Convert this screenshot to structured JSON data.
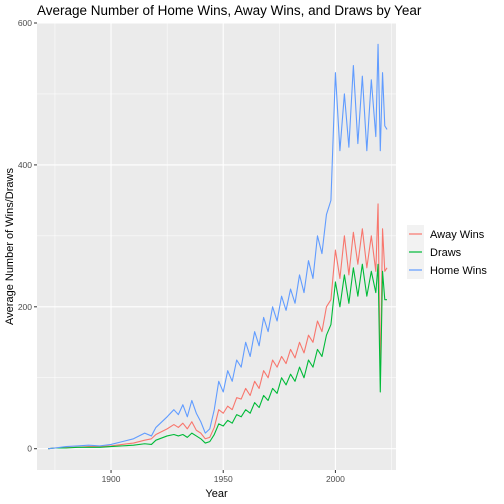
{
  "chart_data": {
    "type": "line",
    "title": "Average Number of Home Wins, Away Wins, and Draws by Year",
    "xlabel": "Year",
    "ylabel": "Average Number of Wins/Draws",
    "xlim": [
      1867,
      2027
    ],
    "ylim": [
      -30,
      600
    ],
    "x_ticks": [
      1900,
      1950,
      2000
    ],
    "y_ticks": [
      0,
      200,
      400,
      600
    ],
    "grid": true,
    "legend_position": "right",
    "background": "#ebebeb",
    "series": [
      {
        "name": "Away Wins",
        "color": "#f8766d",
        "points": [
          [
            1872,
            0
          ],
          [
            1875,
            1
          ],
          [
            1880,
            2
          ],
          [
            1885,
            2
          ],
          [
            1890,
            3
          ],
          [
            1895,
            3
          ],
          [
            1900,
            4
          ],
          [
            1905,
            6
          ],
          [
            1910,
            8
          ],
          [
            1915,
            12
          ],
          [
            1918,
            14
          ],
          [
            1920,
            20
          ],
          [
            1925,
            28
          ],
          [
            1928,
            34
          ],
          [
            1930,
            30
          ],
          [
            1932,
            36
          ],
          [
            1934,
            28
          ],
          [
            1936,
            38
          ],
          [
            1938,
            26
          ],
          [
            1940,
            22
          ],
          [
            1942,
            14
          ],
          [
            1944,
            16
          ],
          [
            1946,
            30
          ],
          [
            1948,
            55
          ],
          [
            1950,
            50
          ],
          [
            1952,
            60
          ],
          [
            1954,
            55
          ],
          [
            1956,
            72
          ],
          [
            1958,
            70
          ],
          [
            1960,
            85
          ],
          [
            1962,
            75
          ],
          [
            1964,
            95
          ],
          [
            1966,
            85
          ],
          [
            1968,
            110
          ],
          [
            1970,
            100
          ],
          [
            1972,
            125
          ],
          [
            1974,
            115
          ],
          [
            1976,
            130
          ],
          [
            1978,
            120
          ],
          [
            1980,
            140
          ],
          [
            1982,
            128
          ],
          [
            1984,
            150
          ],
          [
            1986,
            135
          ],
          [
            1988,
            160
          ],
          [
            1990,
            150
          ],
          [
            1992,
            180
          ],
          [
            1994,
            165
          ],
          [
            1996,
            200
          ],
          [
            1998,
            210
          ],
          [
            2000,
            280
          ],
          [
            2002,
            240
          ],
          [
            2004,
            300
          ],
          [
            2006,
            245
          ],
          [
            2008,
            305
          ],
          [
            2010,
            260
          ],
          [
            2012,
            310
          ],
          [
            2014,
            255
          ],
          [
            2016,
            300
          ],
          [
            2018,
            250
          ],
          [
            2019,
            345
          ],
          [
            2020,
            100
          ],
          [
            2021,
            310
          ],
          [
            2022,
            250
          ],
          [
            2023,
            255
          ]
        ]
      },
      {
        "name": "Draws",
        "color": "#00ba38",
        "points": [
          [
            1872,
            0
          ],
          [
            1875,
            1
          ],
          [
            1880,
            1
          ],
          [
            1885,
            2
          ],
          [
            1890,
            2
          ],
          [
            1895,
            2
          ],
          [
            1900,
            3
          ],
          [
            1905,
            4
          ],
          [
            1910,
            5
          ],
          [
            1915,
            7
          ],
          [
            1918,
            6
          ],
          [
            1920,
            12
          ],
          [
            1925,
            18
          ],
          [
            1928,
            20
          ],
          [
            1930,
            18
          ],
          [
            1932,
            20
          ],
          [
            1934,
            16
          ],
          [
            1936,
            22
          ],
          [
            1938,
            18
          ],
          [
            1940,
            14
          ],
          [
            1942,
            8
          ],
          [
            1944,
            10
          ],
          [
            1946,
            20
          ],
          [
            1948,
            35
          ],
          [
            1950,
            32
          ],
          [
            1952,
            40
          ],
          [
            1954,
            36
          ],
          [
            1956,
            48
          ],
          [
            1958,
            45
          ],
          [
            1960,
            55
          ],
          [
            1962,
            50
          ],
          [
            1964,
            65
          ],
          [
            1966,
            58
          ],
          [
            1968,
            75
          ],
          [
            1970,
            68
          ],
          [
            1972,
            85
          ],
          [
            1974,
            78
          ],
          [
            1976,
            100
          ],
          [
            1978,
            90
          ],
          [
            1980,
            105
          ],
          [
            1982,
            95
          ],
          [
            1984,
            115
          ],
          [
            1986,
            100
          ],
          [
            1988,
            125
          ],
          [
            1990,
            115
          ],
          [
            1992,
            140
          ],
          [
            1994,
            130
          ],
          [
            1996,
            160
          ],
          [
            1998,
            175
          ],
          [
            2000,
            235
          ],
          [
            2002,
            200
          ],
          [
            2004,
            245
          ],
          [
            2006,
            205
          ],
          [
            2008,
            255
          ],
          [
            2010,
            215
          ],
          [
            2012,
            260
          ],
          [
            2014,
            215
          ],
          [
            2016,
            250
          ],
          [
            2018,
            220
          ],
          [
            2019,
            260
          ],
          [
            2020,
            80
          ],
          [
            2021,
            250
          ],
          [
            2022,
            210
          ],
          [
            2023,
            210
          ]
        ]
      },
      {
        "name": "Home Wins",
        "color": "#619cff",
        "points": [
          [
            1872,
            0
          ],
          [
            1875,
            1
          ],
          [
            1880,
            3
          ],
          [
            1885,
            4
          ],
          [
            1890,
            5
          ],
          [
            1895,
            4
          ],
          [
            1900,
            6
          ],
          [
            1905,
            10
          ],
          [
            1910,
            14
          ],
          [
            1915,
            22
          ],
          [
            1918,
            18
          ],
          [
            1920,
            30
          ],
          [
            1925,
            45
          ],
          [
            1928,
            55
          ],
          [
            1930,
            48
          ],
          [
            1932,
            62
          ],
          [
            1934,
            45
          ],
          [
            1936,
            68
          ],
          [
            1938,
            50
          ],
          [
            1940,
            38
          ],
          [
            1942,
            22
          ],
          [
            1944,
            28
          ],
          [
            1946,
            55
          ],
          [
            1948,
            95
          ],
          [
            1950,
            80
          ],
          [
            1952,
            110
          ],
          [
            1954,
            95
          ],
          [
            1956,
            125
          ],
          [
            1958,
            115
          ],
          [
            1960,
            150
          ],
          [
            1962,
            130
          ],
          [
            1964,
            165
          ],
          [
            1966,
            145
          ],
          [
            1968,
            185
          ],
          [
            1970,
            165
          ],
          [
            1972,
            200
          ],
          [
            1974,
            180
          ],
          [
            1976,
            215
          ],
          [
            1978,
            195
          ],
          [
            1980,
            225
          ],
          [
            1982,
            205
          ],
          [
            1984,
            245
          ],
          [
            1986,
            220
          ],
          [
            1988,
            265
          ],
          [
            1990,
            240
          ],
          [
            1992,
            300
          ],
          [
            1994,
            275
          ],
          [
            1996,
            330
          ],
          [
            1998,
            350
          ],
          [
            2000,
            530
          ],
          [
            2002,
            420
          ],
          [
            2004,
            500
          ],
          [
            2006,
            425
          ],
          [
            2008,
            540
          ],
          [
            2010,
            430
          ],
          [
            2012,
            525
          ],
          [
            2014,
            420
          ],
          [
            2016,
            520
          ],
          [
            2018,
            440
          ],
          [
            2019,
            570
          ],
          [
            2020,
            420
          ],
          [
            2021,
            530
          ],
          [
            2022,
            455
          ],
          [
            2023,
            450
          ]
        ]
      }
    ]
  }
}
